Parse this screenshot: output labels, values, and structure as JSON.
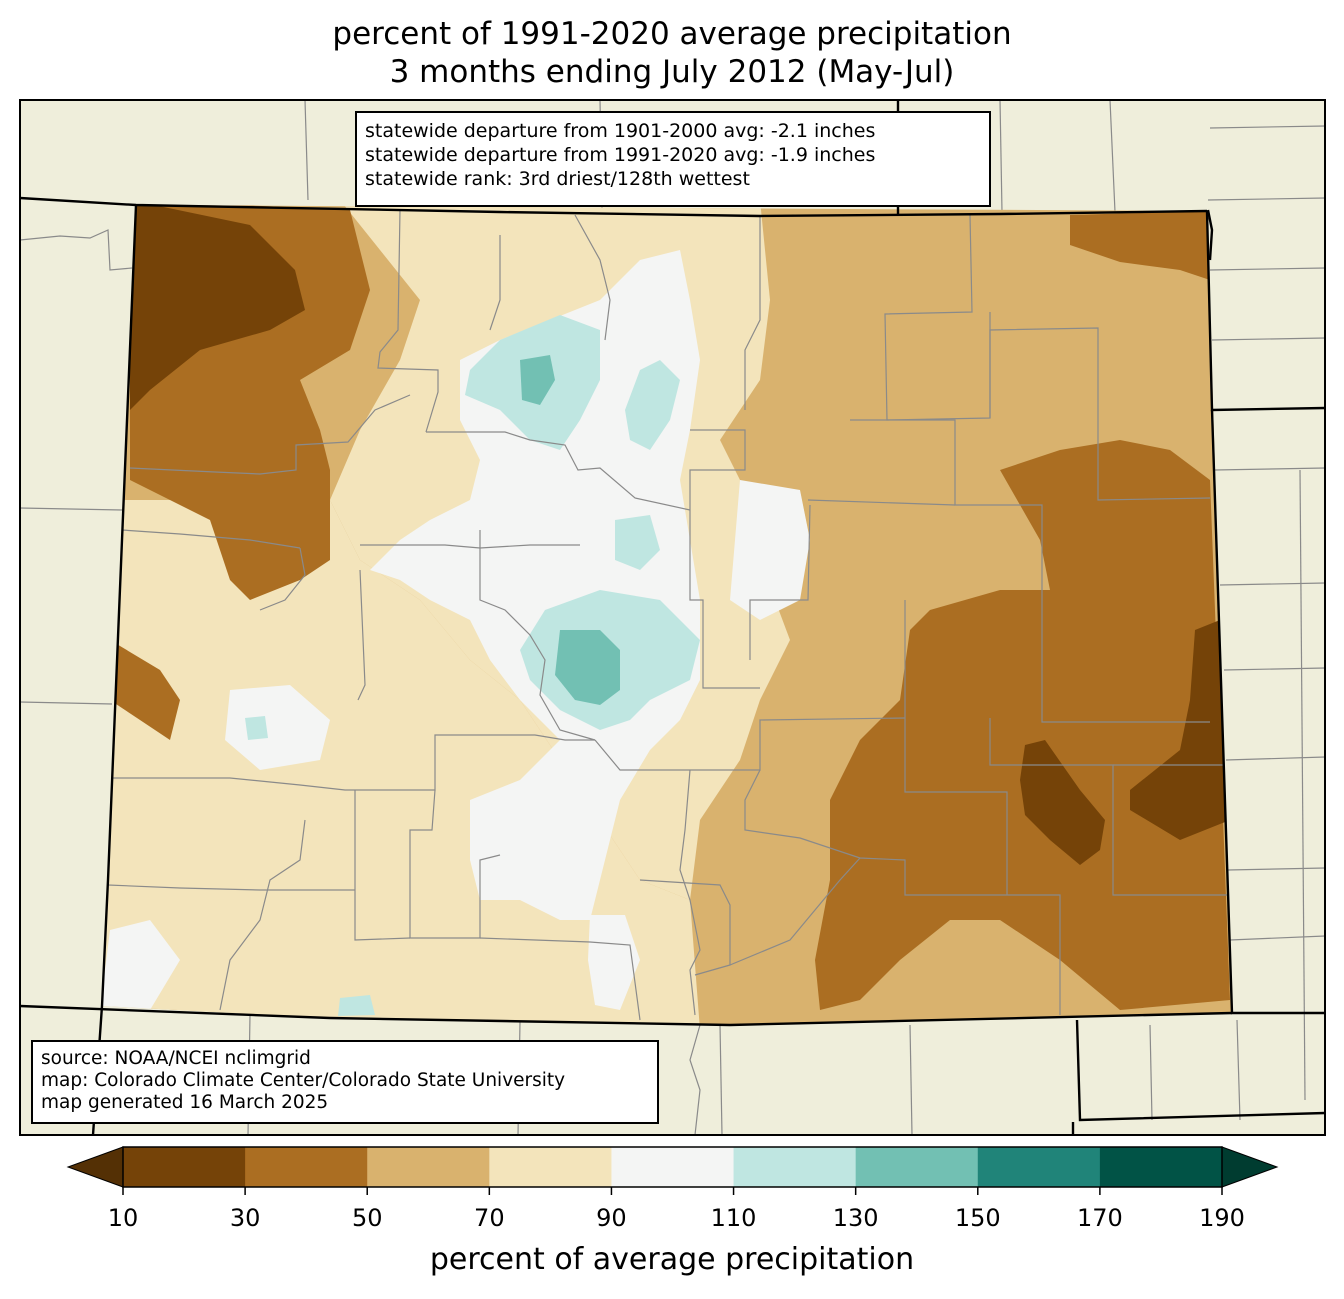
{
  "title": {
    "line1": "percent of 1991-2020 average precipitation",
    "line2": "3 months ending July 2012 (May-Jul)"
  },
  "stats_box": {
    "line1": "statewide departure from 1901-2000 avg: -2.1 inches",
    "line2": "statewide departure from 1991-2020 avg: -1.9 inches",
    "line3": "statewide rank: 3rd driest/128th wettest"
  },
  "source_box": {
    "line1": "source: NOAA/NCEI nclimgrid",
    "line2": "map: Colorado Climate Center/Colorado State University",
    "line3": "map generated 16 March 2025"
  },
  "colorbar": {
    "label": "percent of average precipitation",
    "ticks": [
      "10",
      "30",
      "50",
      "70",
      "90",
      "110",
      "130",
      "150",
      "170",
      "190"
    ],
    "colors": [
      "#754308",
      "#ab6e22",
      "#d9b26e",
      "#f3e4bb",
      "#f4f5f4",
      "#bfe6e1",
      "#72c0b3",
      "#208479",
      "#015346"
    ],
    "under_color": "#543005",
    "over_color": "#003c30"
  },
  "colors": {
    "background_land": "#efeedb",
    "county_lines": "#8a8a8a",
    "state_lines": "#000000"
  }
}
